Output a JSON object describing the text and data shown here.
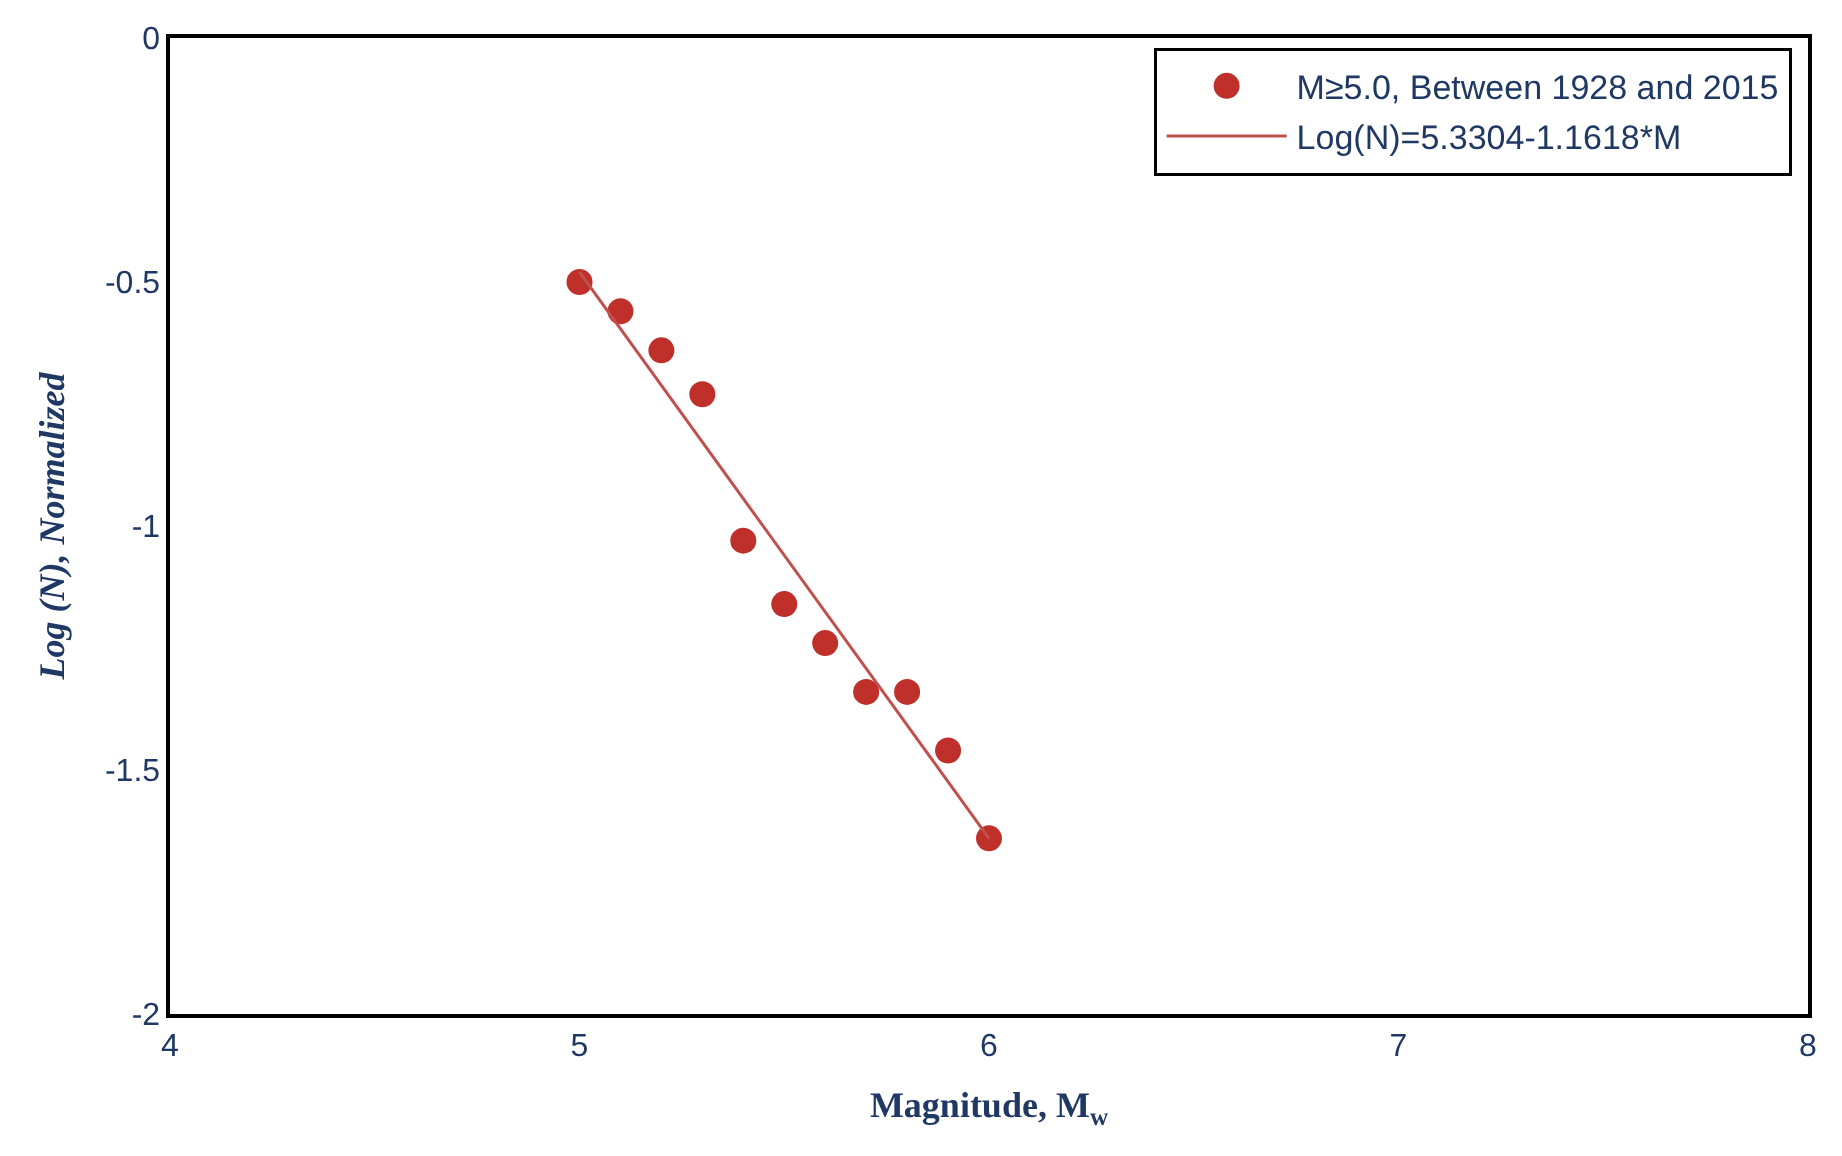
{
  "chart_data": {
    "type": "scatter",
    "xlabel": "Magnitude, M$_{w}$",
    "ylabel": "Log (N), Normalized",
    "xlim": [
      4,
      8
    ],
    "xticks": [
      4,
      5,
      6,
      7,
      8
    ],
    "ylim": [
      -2,
      0
    ],
    "yticks": [
      -2,
      -1.5,
      -1,
      -0.5,
      0
    ],
    "legend": "top right",
    "series": [
      {
        "name": "M≥5.0, Between 1928 and 2015",
        "marker": "circle",
        "color": "#c0302b",
        "x": [
          5.0,
          5.1,
          5.2,
          5.3,
          5.4,
          5.5,
          5.6,
          5.7,
          5.8,
          5.9,
          6.0
        ],
        "values": [
          -0.5,
          -0.56,
          -0.64,
          -0.73,
          -1.03,
          -1.16,
          -1.24,
          -1.34,
          -1.34,
          -1.46,
          -1.64
        ]
      },
      {
        "name": "Log(N)=5.3304-1.1618*M",
        "type": "line",
        "marker": "none",
        "color": "#c0504d",
        "x": [
          5.0,
          6.0
        ],
        "values": [
          -0.48,
          -1.64
        ],
        "line_style": "solid"
      }
    ]
  }
}
